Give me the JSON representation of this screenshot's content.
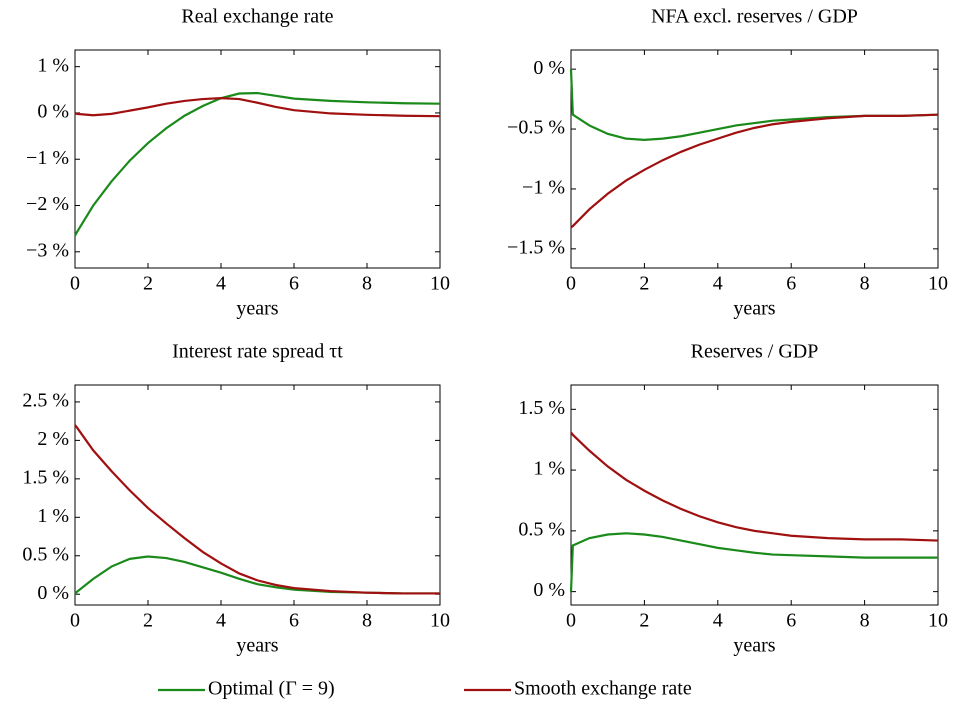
{
  "chart_data": [
    {
      "type": "line",
      "title": "Real exchange rate",
      "xlabel": "years",
      "x": [
        0,
        0.05,
        0.5,
        1,
        1.5,
        2,
        2.5,
        3,
        3.5,
        4,
        4.5,
        5,
        5.5,
        6,
        7,
        8,
        9,
        10
      ],
      "xlim": [
        0,
        10
      ],
      "xticks": [
        0,
        2,
        4,
        6,
        8,
        10
      ],
      "ylim": [
        -3.35,
        1.36
      ],
      "yticks": [
        {
          "value": -3,
          "label": "−3 %"
        },
        {
          "value": -2,
          "label": "−2 %"
        },
        {
          "value": -1,
          "label": "−1 %"
        },
        {
          "value": 0,
          "label": "0 %"
        },
        {
          "value": 1,
          "label": "1 %"
        }
      ],
      "series": [
        {
          "color": "#1a8a1a",
          "values": [
            -2.65,
            -2.58,
            -2.0,
            -1.48,
            -1.03,
            -0.65,
            -0.33,
            -0.06,
            0.15,
            0.32,
            0.42,
            0.43,
            0.37,
            0.31,
            0.26,
            0.23,
            0.21,
            0.2
          ]
        },
        {
          "color": "#a01010",
          "values": [
            0,
            -0.02,
            -0.05,
            -0.02,
            0.05,
            0.12,
            0.2,
            0.26,
            0.3,
            0.32,
            0.3,
            0.22,
            0.13,
            0.06,
            -0.01,
            -0.04,
            -0.06,
            -0.07
          ]
        }
      ]
    },
    {
      "type": "line",
      "title": "NFA excl. reserves / GDP",
      "xlabel": "years",
      "x": [
        0,
        0.05,
        0.5,
        1,
        1.5,
        2,
        2.5,
        3,
        3.5,
        4,
        4.5,
        5,
        5.5,
        6,
        7,
        8,
        9,
        10
      ],
      "xlim": [
        0,
        10
      ],
      "xticks": [
        0,
        2,
        4,
        6,
        8,
        10
      ],
      "ylim": [
        -1.66,
        0.16
      ],
      "yticks": [
        {
          "value": -1.5,
          "label": "−1.5 %"
        },
        {
          "value": -1,
          "label": "−1 %"
        },
        {
          "value": -0.5,
          "label": "−0.5 %"
        },
        {
          "value": 0,
          "label": "0 %"
        }
      ],
      "series": [
        {
          "color": "#1a8a1a",
          "values": [
            0,
            -0.38,
            -0.47,
            -0.54,
            -0.58,
            -0.59,
            -0.58,
            -0.56,
            -0.53,
            -0.5,
            -0.47,
            -0.45,
            -0.43,
            -0.42,
            -0.4,
            -0.39,
            -0.39,
            -0.38
          ]
        },
        {
          "color": "#a01010",
          "values": [
            -1.32,
            -1.31,
            -1.17,
            -1.04,
            -0.93,
            -0.84,
            -0.76,
            -0.69,
            -0.63,
            -0.58,
            -0.53,
            -0.49,
            -0.46,
            -0.44,
            -0.41,
            -0.39,
            -0.39,
            -0.38
          ]
        }
      ]
    },
    {
      "type": "line",
      "title": "Interest rate spread τt",
      "xlabel": "years",
      "x": [
        0,
        0.05,
        0.5,
        1,
        1.5,
        2,
        2.5,
        3,
        3.5,
        4,
        4.5,
        5,
        5.5,
        6,
        7,
        8,
        9,
        10
      ],
      "xlim": [
        0,
        10
      ],
      "xticks": [
        0,
        2,
        4,
        6,
        8,
        10
      ],
      "ylim": [
        -0.14,
        2.72
      ],
      "yticks": [
        {
          "value": 0,
          "label": "0 %"
        },
        {
          "value": 0.5,
          "label": "0.5 %"
        },
        {
          "value": 1,
          "label": "1 %"
        },
        {
          "value": 1.5,
          "label": "1.5 %"
        },
        {
          "value": 2,
          "label": "2 %"
        },
        {
          "value": 2.5,
          "label": "2.5 %"
        }
      ],
      "series": [
        {
          "color": "#1a8a1a",
          "values": [
            0,
            0.03,
            0.2,
            0.36,
            0.46,
            0.49,
            0.47,
            0.42,
            0.35,
            0.28,
            0.2,
            0.13,
            0.09,
            0.06,
            0.03,
            0.02,
            0.01,
            0.01
          ]
        },
        {
          "color": "#a01010",
          "values": [
            2.2,
            2.17,
            1.87,
            1.6,
            1.35,
            1.12,
            0.92,
            0.73,
            0.55,
            0.4,
            0.27,
            0.18,
            0.12,
            0.08,
            0.04,
            0.02,
            0.01,
            0.01
          ]
        }
      ]
    },
    {
      "type": "line",
      "title": "Reserves / GDP",
      "xlabel": "years",
      "x": [
        0,
        0.05,
        0.5,
        1,
        1.5,
        2,
        2.5,
        3,
        3.5,
        4,
        4.5,
        5,
        5.5,
        6,
        7,
        8,
        9,
        10
      ],
      "xlim": [
        0,
        10
      ],
      "xticks": [
        0,
        2,
        4,
        6,
        8,
        10
      ],
      "ylim": [
        -0.11,
        1.7
      ],
      "yticks": [
        {
          "value": 0,
          "label": "0 %"
        },
        {
          "value": 0.5,
          "label": "0.5 %"
        },
        {
          "value": 1,
          "label": "1 %"
        },
        {
          "value": 1.5,
          "label": "1.5 %"
        }
      ],
      "series": [
        {
          "color": "#1a8a1a",
          "values": [
            0,
            0.38,
            0.44,
            0.47,
            0.48,
            0.47,
            0.45,
            0.42,
            0.39,
            0.36,
            0.34,
            0.32,
            0.305,
            0.3,
            0.29,
            0.28,
            0.28,
            0.28
          ]
        },
        {
          "color": "#a01010",
          "values": [
            1.31,
            1.29,
            1.16,
            1.03,
            0.92,
            0.83,
            0.75,
            0.68,
            0.62,
            0.57,
            0.53,
            0.5,
            0.48,
            0.46,
            0.44,
            0.43,
            0.43,
            0.42
          ]
        }
      ]
    }
  ],
  "legend": [
    "Optimal (Γ = 9)",
    "Smooth exchange rate"
  ]
}
